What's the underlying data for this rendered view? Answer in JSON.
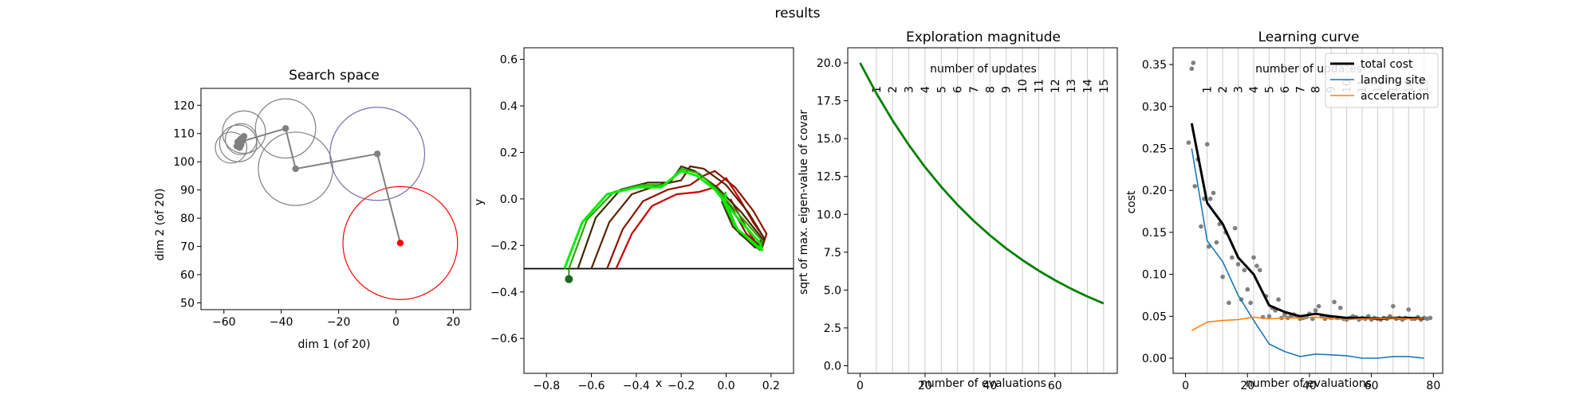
{
  "figure": {
    "suptitle": "results"
  },
  "chart_data": [
    {
      "type": "scatter",
      "title": "Search space",
      "xlabel": "dim 1 (of 20)",
      "ylabel": "dim 2 (of 20)",
      "xlim": [
        -68,
        26
      ],
      "ylim": [
        47.6,
        126
      ],
      "xticks": [
        -60,
        -40,
        -20,
        0,
        20
      ],
      "yticks": [
        50,
        60,
        70,
        80,
        90,
        100,
        110,
        120
      ],
      "colors": {
        "history": "#808080",
        "current": "#ff0000",
        "mid": "#7070a8"
      },
      "path": [
        {
          "x": -55.5,
          "y": 105.5
        },
        {
          "x": -55.0,
          "y": 106.5
        },
        {
          "x": -54.5,
          "y": 105.0
        },
        {
          "x": -55.2,
          "y": 107.0
        },
        {
          "x": -54.0,
          "y": 106.0
        },
        {
          "x": -53.5,
          "y": 107.5
        },
        {
          "x": -54.2,
          "y": 108.0
        },
        {
          "x": -53.0,
          "y": 109.0
        },
        {
          "x": -53.8,
          "y": 107.2
        },
        {
          "x": -38.5,
          "y": 111.8
        },
        {
          "x": -35.0,
          "y": 97.5
        },
        {
          "x": -6.5,
          "y": 102.8
        },
        {
          "x": 1.5,
          "y": 71.2
        }
      ],
      "circles": [
        {
          "x": -57.5,
          "y": 105.0,
          "r": 5.5,
          "color": "#808080"
        },
        {
          "x": -55.0,
          "y": 106.5,
          "r": 6.5,
          "color": "#808080"
        },
        {
          "x": -54.0,
          "y": 108.0,
          "r": 5.5,
          "color": "#808080"
        },
        {
          "x": -53.0,
          "y": 110.5,
          "r": 7.5,
          "color": "#808080"
        },
        {
          "x": -38.5,
          "y": 111.8,
          "r": 10.5,
          "color": "#808080"
        },
        {
          "x": -35.0,
          "y": 97.5,
          "r": 13.0,
          "color": "#808080"
        },
        {
          "x": -6.5,
          "y": 102.8,
          "r": 16.5,
          "color": "#7070a8"
        },
        {
          "x": 1.5,
          "y": 71.2,
          "r": 20.0,
          "color": "#ff0000"
        }
      ]
    },
    {
      "type": "line",
      "title": "",
      "xlabel": "x",
      "ylabel": "y",
      "xlim": [
        -0.9,
        0.3
      ],
      "ylim": [
        -0.75,
        0.65
      ],
      "xticks": [
        -0.8,
        -0.6,
        -0.4,
        -0.2,
        0.0,
        0.2
      ],
      "yticks": [
        -0.6,
        -0.4,
        -0.2,
        0.0,
        0.2,
        0.4,
        0.6
      ],
      "ground_y": -0.3,
      "landing_point": {
        "x": -0.7,
        "y": -0.345
      },
      "series": [
        {
          "color": "#cc0000",
          "values": [
            [
              -0.49,
              -0.3
            ],
            [
              -0.42,
              -0.15
            ],
            [
              -0.33,
              -0.03
            ],
            [
              -0.22,
              0.02
            ],
            [
              -0.12,
              0.03
            ],
            [
              -0.05,
              0.05
            ],
            [
              0.0,
              0.09
            ],
            [
              0.06,
              0.0
            ],
            [
              0.12,
              -0.1
            ],
            [
              0.17,
              -0.17
            ],
            [
              0.14,
              -0.2
            ],
            [
              0.1,
              -0.14
            ],
            [
              0.03,
              -0.02
            ],
            [
              0.02,
              0.0
            ]
          ]
        },
        {
          "color": "#8a1500",
          "values": [
            [
              -0.53,
              -0.3
            ],
            [
              -0.46,
              -0.13
            ],
            [
              -0.37,
              -0.01
            ],
            [
              -0.26,
              0.04
            ],
            [
              -0.16,
              0.06
            ],
            [
              -0.1,
              0.1
            ],
            [
              -0.05,
              0.12
            ],
            [
              0.04,
              0.05
            ],
            [
              0.12,
              -0.05
            ],
            [
              0.18,
              -0.15
            ],
            [
              0.16,
              -0.21
            ],
            [
              0.09,
              -0.15
            ],
            [
              0.02,
              -0.03
            ],
            [
              0.0,
              -0.01
            ]
          ]
        },
        {
          "color": "#5a2400",
          "values": [
            [
              -0.6,
              -0.3
            ],
            [
              -0.52,
              -0.1
            ],
            [
              -0.42,
              0.02
            ],
            [
              -0.3,
              0.06
            ],
            [
              -0.2,
              0.08
            ],
            [
              -0.16,
              0.14
            ],
            [
              -0.1,
              0.13
            ],
            [
              0.0,
              0.06
            ],
            [
              0.1,
              -0.06
            ],
            [
              0.17,
              -0.17
            ],
            [
              0.15,
              -0.22
            ],
            [
              0.06,
              -0.15
            ],
            [
              0.0,
              -0.02
            ]
          ]
        },
        {
          "color": "#3a2c00",
          "values": [
            [
              -0.66,
              -0.3
            ],
            [
              -0.58,
              -0.08
            ],
            [
              -0.47,
              0.04
            ],
            [
              -0.35,
              0.07
            ],
            [
              -0.25,
              0.07
            ],
            [
              -0.2,
              0.14
            ],
            [
              -0.14,
              0.12
            ],
            [
              -0.04,
              0.05
            ],
            [
              0.07,
              -0.06
            ],
            [
              0.16,
              -0.17
            ],
            [
              0.13,
              -0.21
            ],
            [
              0.03,
              -0.12
            ],
            [
              -0.02,
              -0.01
            ]
          ]
        },
        {
          "color": "#2aa800",
          "values": [
            [
              -0.7,
              -0.3
            ],
            [
              -0.62,
              -0.09
            ],
            [
              -0.5,
              0.03
            ],
            [
              -0.38,
              0.06
            ],
            [
              -0.27,
              0.06
            ],
            [
              -0.2,
              0.13
            ],
            [
              -0.12,
              0.11
            ],
            [
              -0.04,
              0.04
            ],
            [
              0.06,
              -0.07
            ],
            [
              0.16,
              -0.18
            ],
            [
              0.15,
              -0.22
            ],
            [
              0.04,
              -0.12
            ],
            [
              -0.02,
              0.0
            ],
            [
              0.0,
              0.03
            ]
          ]
        },
        {
          "color": "#00ee00",
          "values": [
            [
              -0.72,
              -0.3
            ],
            [
              -0.64,
              -0.1
            ],
            [
              -0.53,
              0.02
            ],
            [
              -0.4,
              0.05
            ],
            [
              -0.29,
              0.05
            ],
            [
              -0.2,
              0.12
            ],
            [
              -0.13,
              0.1
            ],
            [
              -0.05,
              0.04
            ],
            [
              0.05,
              -0.08
            ],
            [
              0.15,
              -0.19
            ],
            [
              0.16,
              -0.22
            ],
            [
              0.05,
              -0.13
            ],
            [
              -0.01,
              -0.01
            ],
            [
              0.0,
              0.02
            ]
          ]
        }
      ]
    },
    {
      "type": "line",
      "title": "Exploration magnitude",
      "xlabel": "number of evaluations",
      "ylabel": "sqrt of max. eigen-value of covar",
      "xlim": [
        -3.8,
        79.2
      ],
      "ylim": [
        -0.5,
        21.0
      ],
      "xticks": [
        0,
        20,
        40,
        60
      ],
      "yticks": [
        0.0,
        2.5,
        5.0,
        7.5,
        10.0,
        12.5,
        15.0,
        17.5,
        20.0
      ],
      "ytick_labels": [
        "0.0",
        "2.5",
        "5.0",
        "7.5",
        "10.0",
        "12.5",
        "15.0",
        "17.5",
        "20.0"
      ],
      "update_label": "number of updates",
      "updates": [
        1,
        2,
        3,
        4,
        5,
        6,
        7,
        8,
        9,
        10,
        11,
        12,
        13,
        14,
        15
      ],
      "update_x": [
        5,
        10,
        15,
        20,
        25,
        30,
        35,
        40,
        45,
        50,
        55,
        60,
        65,
        70,
        75
      ],
      "line_color": "#008000",
      "decay": {
        "start": 20.0,
        "rate": 0.9
      }
    },
    {
      "type": "line",
      "title": "Learning curve",
      "xlabel": "number of evaluations",
      "ylabel": "cost",
      "xlim": [
        -4,
        83
      ],
      "ylim": [
        -0.018,
        0.37
      ],
      "xticks": [
        0,
        20,
        40,
        60,
        80
      ],
      "yticks": [
        0.0,
        0.05,
        0.1,
        0.15,
        0.2,
        0.25,
        0.3,
        0.35
      ],
      "ytick_labels": [
        "0.00",
        "0.05",
        "0.10",
        "0.15",
        "0.20",
        "0.25",
        "0.30",
        "0.35"
      ],
      "update_label": "number of updates",
      "updates": [
        1,
        2,
        3,
        4,
        5,
        6,
        7,
        8,
        9,
        10,
        11,
        12,
        13,
        14,
        15
      ],
      "update_x": [
        7,
        12,
        17,
        22,
        27,
        32,
        37,
        42,
        47,
        52,
        57,
        62,
        67,
        72,
        77
      ],
      "legend": {
        "position": "upper right",
        "entries": [
          "total cost",
          "landing site",
          "acceleration"
        ]
      },
      "x": [
        2,
        7,
        12,
        17,
        22,
        27,
        32,
        37,
        42,
        47,
        52,
        57,
        62,
        67,
        72,
        77
      ],
      "series": [
        {
          "name": "total cost",
          "color": "#000000",
          "values": [
            0.28,
            0.185,
            0.16,
            0.12,
            0.1,
            0.063,
            0.055,
            0.05,
            0.053,
            0.05,
            0.048,
            0.048,
            0.047,
            0.048,
            0.048,
            0.047
          ]
        },
        {
          "name": "landing site",
          "color": "#1f77b4",
          "values": [
            0.25,
            0.14,
            0.115,
            0.075,
            0.045,
            0.017,
            0.008,
            0.002,
            0.005,
            0.004,
            0.003,
            0.0,
            0.0,
            0.002,
            0.002,
            0.0
          ]
        },
        {
          "name": "acceleration",
          "color": "#ff7f0e",
          "values": [
            0.033,
            0.043,
            0.045,
            0.046,
            0.049,
            0.047,
            0.048,
            0.048,
            0.049,
            0.047,
            0.046,
            0.047,
            0.047,
            0.048,
            0.047,
            0.047
          ]
        }
      ],
      "samples_color": "#808080",
      "samples": [
        [
          1,
          0.257
        ],
        [
          2,
          0.345
        ],
        [
          2.5,
          0.352
        ],
        [
          3,
          0.205
        ],
        [
          4,
          0.237
        ],
        [
          5,
          0.157
        ],
        [
          6,
          0.19
        ],
        [
          7,
          0.255
        ],
        [
          7.5,
          0.133
        ],
        [
          8,
          0.19
        ],
        [
          9,
          0.197
        ],
        [
          10,
          0.138
        ],
        [
          11,
          0.16
        ],
        [
          12,
          0.097
        ],
        [
          13,
          0.15
        ],
        [
          14,
          0.066
        ],
        [
          15,
          0.12
        ],
        [
          16,
          0.155
        ],
        [
          17,
          0.112
        ],
        [
          18,
          0.07
        ],
        [
          19,
          0.105
        ],
        [
          20,
          0.082
        ],
        [
          21,
          0.066
        ],
        [
          22,
          0.12
        ],
        [
          23,
          0.11
        ],
        [
          24,
          0.105
        ],
        [
          25,
          0.049
        ],
        [
          26,
          0.074
        ],
        [
          27,
          0.05
        ],
        [
          28,
          0.06
        ],
        [
          29,
          0.057
        ],
        [
          30,
          0.07
        ],
        [
          31,
          0.048
        ],
        [
          32,
          0.052
        ],
        [
          33,
          0.048
        ],
        [
          34,
          0.05
        ],
        [
          35,
          0.052
        ],
        [
          36,
          0.05
        ],
        [
          37,
          0.047
        ],
        [
          38,
          0.048
        ],
        [
          39,
          0.049
        ],
        [
          40,
          0.053
        ],
        [
          41,
          0.047
        ],
        [
          42,
          0.057
        ],
        [
          43,
          0.062
        ],
        [
          44,
          0.05
        ],
        [
          45,
          0.047
        ],
        [
          46,
          0.049
        ],
        [
          47,
          0.048
        ],
        [
          48,
          0.067
        ],
        [
          49,
          0.048
        ],
        [
          50,
          0.06
        ],
        [
          51,
          0.047
        ],
        [
          52,
          0.046
        ],
        [
          53,
          0.048
        ],
        [
          54,
          0.05
        ],
        [
          55,
          0.049
        ],
        [
          56,
          0.046
        ],
        [
          57,
          0.048
        ],
        [
          58,
          0.047
        ],
        [
          59,
          0.05
        ],
        [
          60,
          0.046
        ],
        [
          61,
          0.048
        ],
        [
          62,
          0.047
        ],
        [
          63,
          0.046
        ],
        [
          64,
          0.048
        ],
        [
          65,
          0.047
        ],
        [
          66,
          0.05
        ],
        [
          67,
          0.062
        ],
        [
          68,
          0.047
        ],
        [
          69,
          0.048
        ],
        [
          70,
          0.046
        ],
        [
          71,
          0.048
        ],
        [
          72,
          0.058
        ],
        [
          73,
          0.047
        ],
        [
          74,
          0.047
        ],
        [
          75,
          0.049
        ],
        [
          76,
          0.046
        ],
        [
          77,
          0.048
        ],
        [
          78,
          0.047
        ],
        [
          79,
          0.048
        ]
      ]
    }
  ]
}
